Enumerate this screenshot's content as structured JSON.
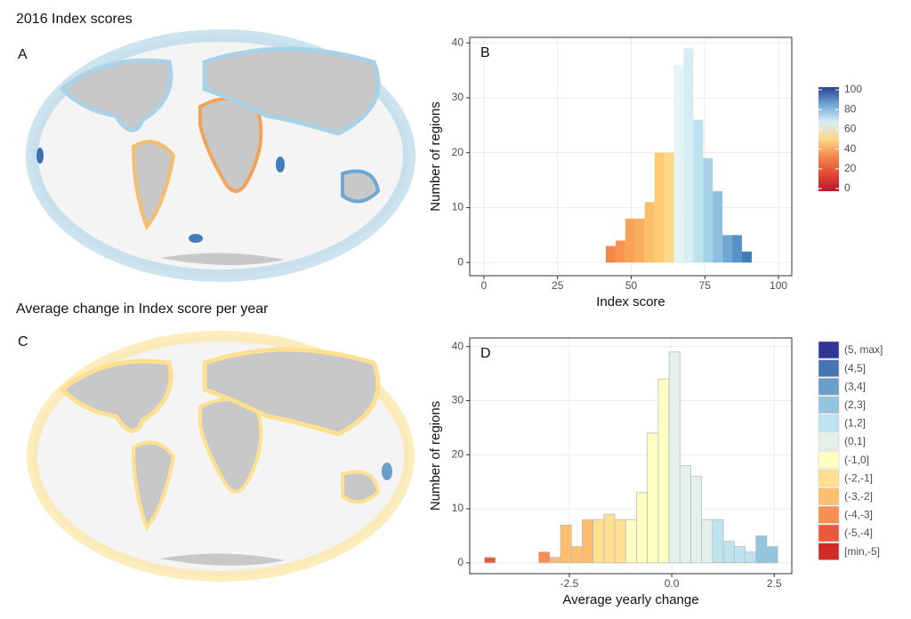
{
  "figure": {
    "sections": [
      {
        "title": "2016 Index scores",
        "map_label": "A"
      },
      {
        "title": "Average change in Index score per year",
        "map_label": "C"
      }
    ]
  },
  "chart_data": [
    {
      "type": "histogram",
      "panel_label": "B",
      "xlabel": "Index score",
      "ylabel": "Number of regions",
      "bins": [
        41.4,
        44.7,
        48.0,
        51.3,
        54.6,
        57.9,
        61.2,
        64.5,
        67.8,
        71.1,
        74.4,
        77.7,
        81.0,
        84.3,
        87.6,
        90.9
      ],
      "values": [
        3,
        4,
        8,
        8,
        11,
        20,
        20,
        36,
        39,
        26,
        19,
        13,
        5,
        5,
        2
      ],
      "colors": [
        "#f4874a",
        "#f69550",
        "#f8a257",
        "#f9af5e",
        "#fbbf68",
        "#fccb74",
        "#fdd887",
        "#e6f3f7",
        "#d6edf5",
        "#bfe2ef",
        "#a7d3e8",
        "#8bc1de",
        "#6ea8d2",
        "#5592c5",
        "#3f7cb9"
      ],
      "xlim": [
        -4.8,
        104.5
      ],
      "ylim": [
        -2.4,
        41
      ],
      "xticks": [
        0,
        25,
        50,
        75,
        100
      ],
      "yticks": [
        0,
        10,
        20,
        30,
        40
      ],
      "grid": true,
      "colorbar": {
        "range": [
          0,
          100
        ],
        "ticks": [
          0,
          20,
          40,
          60,
          80,
          100
        ],
        "colors": [
          "#b2182b",
          "#e34a33",
          "#f4874a",
          "#fdd887",
          "#d6edf5",
          "#6ea8d2",
          "#2b3f99"
        ]
      }
    },
    {
      "type": "histogram",
      "panel_label": "D",
      "xlabel": "Average yearly change",
      "ylabel": "Number of regions",
      "bins": [
        -4.57,
        -4.305,
        -4.04,
        -3.775,
        -3.51,
        -3.245,
        -2.98,
        -2.715,
        -2.45,
        -2.185,
        -1.92,
        -1.655,
        -1.39,
        -1.125,
        -0.86,
        -0.595,
        -0.33,
        -0.065,
        0.2,
        0.465,
        0.73,
        0.995,
        1.26,
        1.525,
        1.79,
        2.055,
        2.32,
        2.585
      ],
      "values": [
        1,
        0,
        0,
        0,
        0,
        2,
        1,
        7,
        3,
        8,
        8,
        9,
        8,
        8,
        13,
        24,
        34,
        39,
        18,
        16,
        8,
        8,
        4,
        3,
        2,
        5,
        3
      ],
      "colors": [
        "#ea5a3a",
        "#ffffff",
        "#ffffff",
        "#ffffff",
        "#ffffff",
        "#f98e52",
        "#fdbe6f",
        "#fdbe6f",
        "#fdbe6f",
        "#fdbe6f",
        "#fee090",
        "#fee090",
        "#fee090",
        "#ffffc4",
        "#ffffc4",
        "#ffffc4",
        "#ffffc4",
        "#e3f1ea",
        "#e3f1ea",
        "#e3f1ea",
        "#e3f1ea",
        "#bde3ee",
        "#bde3ee",
        "#bde3ee",
        "#bde3ee",
        "#92c5de",
        "#92c5de"
      ],
      "xlim": [
        -4.93,
        2.93
      ],
      "ylim": [
        -2,
        41.6
      ],
      "xticks": [
        -2.5,
        {
          "value": 0,
          "label": "0.0"
        },
        2.5
      ],
      "yticks": [
        0,
        10,
        20,
        30,
        40
      ],
      "grid": true,
      "legend": [
        {
          "label": "(5, max]",
          "color": "#313695"
        },
        {
          "label": "(4,5]",
          "color": "#4575b4"
        },
        {
          "label": "(3,4]",
          "color": "#6a9fcc"
        },
        {
          "label": "(2,3]",
          "color": "#92c5de"
        },
        {
          "label": "(1,2]",
          "color": "#bde3ee"
        },
        {
          "label": "(0,1]",
          "color": "#e3f1ea"
        },
        {
          "label": "(-1,0]",
          "color": "#ffffc4"
        },
        {
          "label": "(-2,-1]",
          "color": "#fee090"
        },
        {
          "label": "(-3,-2]",
          "color": "#fdbe6f"
        },
        {
          "label": "(-4,-3]",
          "color": "#f98e52"
        },
        {
          "label": "(-5,-4]",
          "color": "#ea5a3a"
        },
        {
          "label": "[min,-5]",
          "color": "#d22b26"
        }
      ]
    }
  ]
}
